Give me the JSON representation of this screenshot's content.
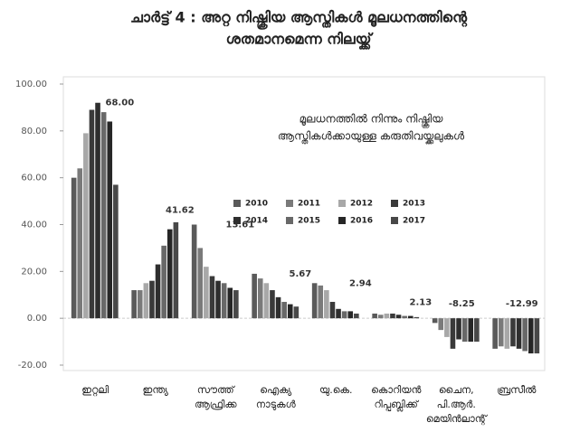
{
  "chart_data": {
    "type": "bar",
    "title": [
      "ചാർട്ട് 4 : അറ്റ നിഷ്ക്രിയ ആസ്തികൾ മൂലധനത്തിന്റെ",
      "ശതമാനമെന്ന നിലയ്ക്ക്"
    ],
    "subtitle": [
      "മൂലധനത്തിൽ നിന്നും നിഷ്ക്രിയ",
      "ആസ്തികൾക്കായുള്ള കരുതിവയ്ക്കലുകൾ"
    ],
    "categories": [
      [
        "ഇറ്റലി"
      ],
      [
        "ഇന്ത്യ"
      ],
      [
        "സൗത്ത്",
        "ആഫ്രിക്ക"
      ],
      [
        "ഐക്യ",
        "നാടുകൾ"
      ],
      [
        "യു.കെ."
      ],
      [
        "കൊറിയൻ",
        "റിപ്പബ്ലിക്ക്"
      ],
      [
        "ചൈന,",
        "പി.ആർ.",
        "മെയിൻലാന്റ്"
      ],
      [
        "ബ്രസീൽ"
      ]
    ],
    "series": [
      {
        "name": "2010",
        "color": "#5a5a5a",
        "values": [
          60,
          12,
          40,
          19,
          15,
          2,
          -2,
          -13
        ]
      },
      {
        "name": "2011",
        "color": "#7a7a7a",
        "values": [
          64,
          12,
          30,
          17,
          14,
          1.5,
          -5,
          -12
        ]
      },
      {
        "name": "2012",
        "color": "#a8a8a8",
        "values": [
          79,
          15,
          22,
          15,
          12,
          2,
          -8,
          -13
        ]
      },
      {
        "name": "2013",
        "color": "#3a3a3a",
        "values": [
          89,
          16,
          18,
          12,
          7,
          2,
          -13,
          -12
        ]
      },
      {
        "name": "2014",
        "color": "#2e2e2e",
        "values": [
          92,
          23,
          16,
          9,
          4,
          1.5,
          -9,
          -13
        ]
      },
      {
        "name": "2015",
        "color": "#686868",
        "values": [
          88,
          31,
          15,
          7,
          3,
          1,
          -10,
          -14
        ]
      },
      {
        "name": "2016",
        "color": "#262626",
        "values": [
          84,
          38,
          13,
          6,
          3,
          1,
          -10,
          -15
        ]
      },
      {
        "name": "2017",
        "color": "#484848",
        "values": [
          57,
          41,
          12,
          5,
          2,
          0.5,
          -10,
          -15
        ]
      }
    ],
    "annotations": [
      {
        "value": 68,
        "label": "68.00"
      },
      {
        "value": 41.62,
        "label": "41.62"
      },
      {
        "value": 13.61,
        "label": "13.61"
      },
      {
        "value": 5.67,
        "label": "5.67"
      },
      {
        "value": 2.94,
        "label": "2.94"
      },
      {
        "value": 2.13,
        "label": "2.13"
      },
      {
        "value": -8.25,
        "label": "-8.25"
      },
      {
        "value": -12.99,
        "label": "-12.99"
      }
    ],
    "ylim": [
      -20,
      100
    ],
    "yticks": [
      {
        "value": -20,
        "label": "-20.00"
      },
      {
        "value": 0,
        "label": "0.00"
      },
      {
        "value": 20,
        "label": "20.00"
      },
      {
        "value": 40,
        "label": "40.00"
      },
      {
        "value": 60,
        "label": "60.00"
      },
      {
        "value": 80,
        "label": "80.00"
      },
      {
        "value": 100,
        "label": "100.00"
      }
    ],
    "grid": false
  }
}
